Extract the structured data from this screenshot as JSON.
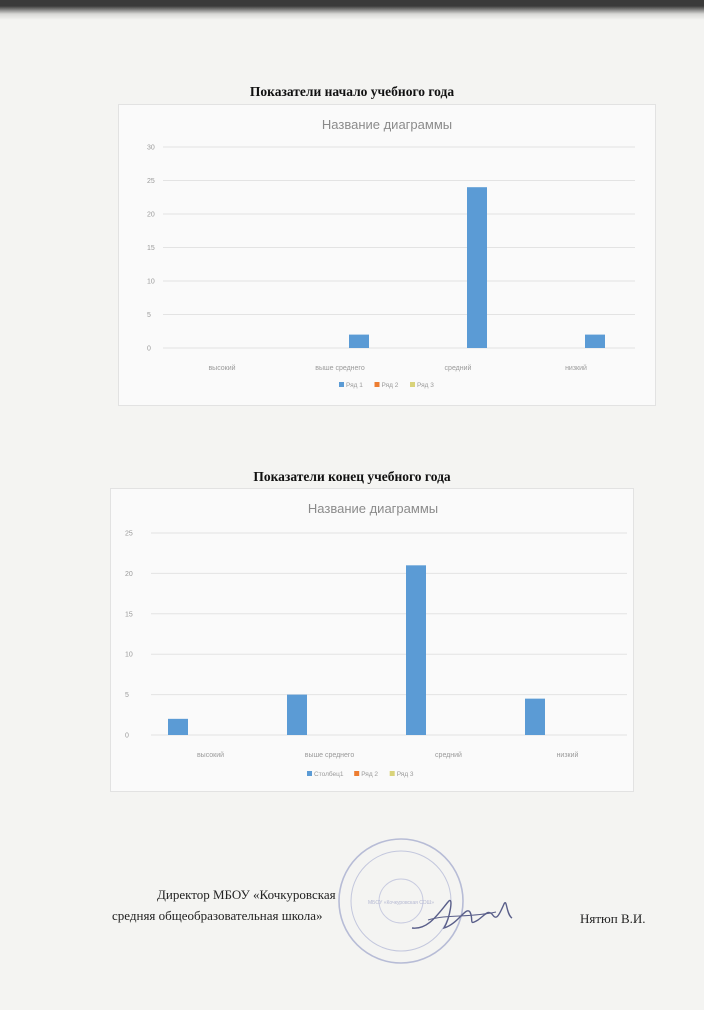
{
  "sections": [
    {
      "heading": "Показатели начало учебного года"
    },
    {
      "heading": "Показатели конец учебного года"
    }
  ],
  "chart_data": [
    {
      "type": "bar",
      "title": "Название диаграммы",
      "categories": [
        "высокий",
        "выше среднего",
        "средний",
        "низкий"
      ],
      "series": [
        {
          "name": "Ряд 1",
          "values": [
            0,
            2,
            24,
            2
          ],
          "color": "#5b9bd5"
        },
        {
          "name": "Ряд 2",
          "values": [
            0,
            0,
            0,
            0
          ],
          "color": "#ed7d31"
        },
        {
          "name": "Ряд 3",
          "values": [
            0,
            0,
            0,
            0
          ],
          "color": "#d9d37a"
        }
      ],
      "ylim": [
        0,
        30
      ],
      "yticks": [
        "0",
        "5",
        "10",
        "15",
        "20",
        "25",
        "30"
      ],
      "grid": true,
      "legend": "bottom"
    },
    {
      "type": "bar",
      "title": "Название диаграммы",
      "categories": [
        "высокий",
        "выше среднего",
        "средний",
        "низкий"
      ],
      "series": [
        {
          "name": "Столбец1",
          "values": [
            2,
            5,
            21,
            4.5
          ],
          "color": "#5b9bd5"
        },
        {
          "name": "Ряд 2",
          "values": [
            0,
            0,
            0,
            0
          ],
          "color": "#ed7d31"
        },
        {
          "name": "Ряд 3",
          "values": [
            0,
            0,
            0,
            0
          ],
          "color": "#d9d37a"
        }
      ],
      "ylim": [
        0,
        25
      ],
      "yticks": [
        "0",
        "5",
        "10",
        "15",
        "20",
        "25"
      ],
      "grid": true,
      "legend": "bottom"
    }
  ],
  "signature": {
    "line1": "Директор МБОУ «Кочкуровская",
    "line2": "средняя общеобразовательная школа»",
    "name": "Нятюп В.И.",
    "stamp_text": "МБОУ «Кочкуровская СОШ»"
  }
}
